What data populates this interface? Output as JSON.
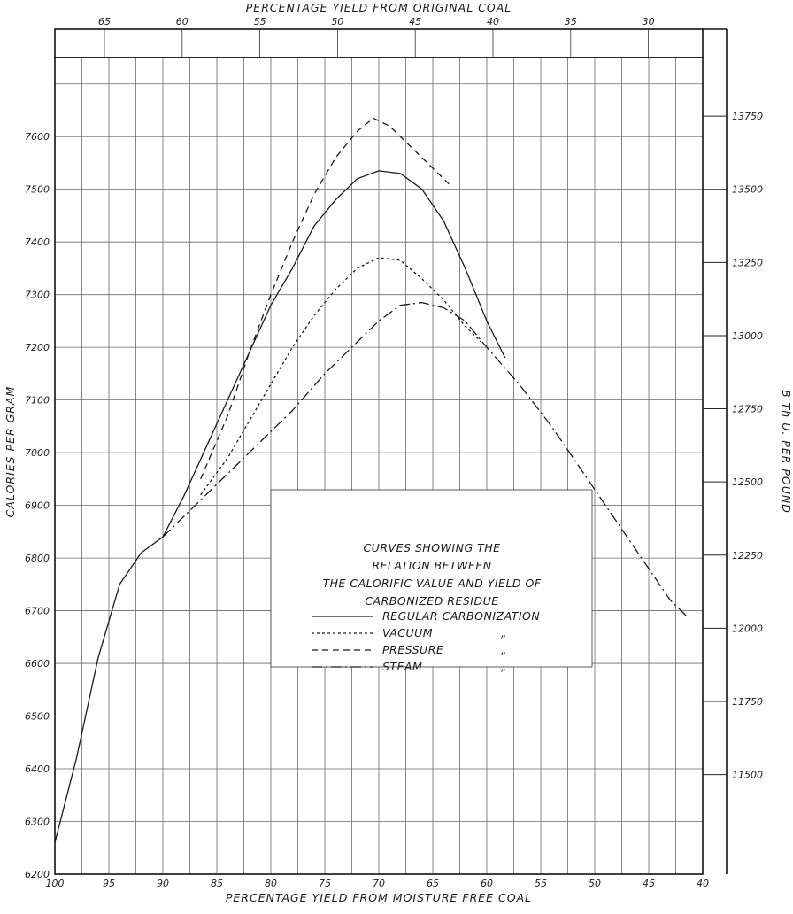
{
  "chart_data": {
    "type": "line",
    "x_axis": {
      "label": "PERCENTAGE YIELD FROM MOISTURE FREE COAL",
      "range": [
        100,
        40
      ],
      "ticks": [
        "100",
        "95",
        "90",
        "85",
        "80",
        "75",
        "70",
        "65",
        "60",
        "55",
        "50",
        "45",
        "40"
      ]
    },
    "x_top_axis": {
      "label": "PERCENTAGE YIELD FROM ORIGINAL COAL",
      "ticks": [
        {
          "value": 65,
          "label": "65"
        },
        {
          "value": 60,
          "label": "60"
        },
        {
          "value": 55,
          "label": "55"
        },
        {
          "value": 50,
          "label": "50"
        },
        {
          "value": 45,
          "label": "45"
        },
        {
          "value": 40,
          "label": "40"
        },
        {
          "value": 35,
          "label": "35"
        },
        {
          "value": 30,
          "label": "30"
        }
      ]
    },
    "y_axis": {
      "label": "CALORIES PER GRAM",
      "range": [
        6200,
        7750
      ],
      "ticks": [
        "6200",
        "6300",
        "6400",
        "6500",
        "6600",
        "6700",
        "6800",
        "6900",
        "7000",
        "7100",
        "7200",
        "7300",
        "7400",
        "7500",
        "7600"
      ]
    },
    "y_right_axis": {
      "label": "B Th U. PER POUND",
      "ticks": [
        {
          "value": 11500,
          "label": "11500"
        },
        {
          "value": 11750,
          "label": "11750"
        },
        {
          "value": 12000,
          "label": "12000"
        },
        {
          "value": 12250,
          "label": "12250"
        },
        {
          "value": 12500,
          "label": "12500"
        },
        {
          "value": 12750,
          "label": "12750"
        },
        {
          "value": 13000,
          "label": "13000"
        },
        {
          "value": 13250,
          "label": "13250"
        },
        {
          "value": 13500,
          "label": "13500"
        },
        {
          "value": 13750,
          "label": "13750"
        }
      ]
    },
    "grid": true,
    "legend": {
      "position": "center-right",
      "title_lines": [
        "CURVES SHOWING THE",
        "RELATION BETWEEN",
        "THE CALORIFIC VALUE AND YIELD OF",
        "CARBONIZED RESIDUE"
      ],
      "entries": [
        {
          "label": "REGULAR CARBONIZATION",
          "ditto": ""
        },
        {
          "label": "VACUUM",
          "ditto": "„"
        },
        {
          "label": "PRESSURE",
          "ditto": "„"
        },
        {
          "label": "STEAM",
          "ditto": "„"
        }
      ]
    },
    "series": [
      {
        "name": "REGULAR CARBONIZATION",
        "dash": "",
        "points": [
          [
            100,
            6260
          ],
          [
            98,
            6420
          ],
          [
            96,
            6610
          ],
          [
            94,
            6750
          ],
          [
            92,
            6810
          ],
          [
            90,
            6840
          ],
          [
            88,
            6920
          ],
          [
            86,
            7010
          ],
          [
            84,
            7100
          ],
          [
            82,
            7190
          ],
          [
            80,
            7280
          ],
          [
            78,
            7350
          ],
          [
            76,
            7430
          ],
          [
            74,
            7480
          ],
          [
            72,
            7520
          ],
          [
            70,
            7535
          ],
          [
            68,
            7530
          ],
          [
            66,
            7500
          ],
          [
            64,
            7440
          ],
          [
            62,
            7350
          ],
          [
            60,
            7250
          ],
          [
            58.3,
            7180
          ]
        ]
      },
      {
        "name": "VACUUM",
        "dash": "3,3",
        "points": [
          [
            86.5,
            6920
          ],
          [
            84,
            6990
          ],
          [
            82,
            7060
          ],
          [
            80,
            7130
          ],
          [
            78,
            7200
          ],
          [
            76,
            7260
          ],
          [
            74,
            7310
          ],
          [
            72,
            7350
          ],
          [
            70,
            7370
          ],
          [
            68,
            7365
          ],
          [
            66,
            7330
          ],
          [
            64,
            7290
          ],
          [
            62,
            7240
          ],
          [
            60.5,
            7210
          ]
        ]
      },
      {
        "name": "PRESSURE",
        "dash": "7,5",
        "points": [
          [
            86.5,
            6950
          ],
          [
            84,
            7070
          ],
          [
            82,
            7190
          ],
          [
            80,
            7300
          ],
          [
            78,
            7400
          ],
          [
            76,
            7490
          ],
          [
            74,
            7560
          ],
          [
            72,
            7610
          ],
          [
            70.5,
            7635
          ],
          [
            69,
            7620
          ],
          [
            67,
            7580
          ],
          [
            65,
            7540
          ],
          [
            63.5,
            7510
          ]
        ]
      },
      {
        "name": "STEAM",
        "dash": "12,4,2,4",
        "points": [
          [
            90,
            6840
          ],
          [
            87,
            6900
          ],
          [
            84,
            6960
          ],
          [
            81,
            7020
          ],
          [
            78,
            7080
          ],
          [
            75,
            7150
          ],
          [
            72,
            7210
          ],
          [
            70,
            7250
          ],
          [
            68,
            7280
          ],
          [
            66,
            7285
          ],
          [
            64,
            7275
          ],
          [
            62,
            7250
          ],
          [
            60,
            7200
          ],
          [
            57,
            7130
          ],
          [
            54,
            7050
          ],
          [
            51,
            6960
          ],
          [
            48,
            6870
          ],
          [
            45,
            6780
          ],
          [
            43,
            6720
          ],
          [
            41.5,
            6690
          ]
        ]
      }
    ]
  }
}
